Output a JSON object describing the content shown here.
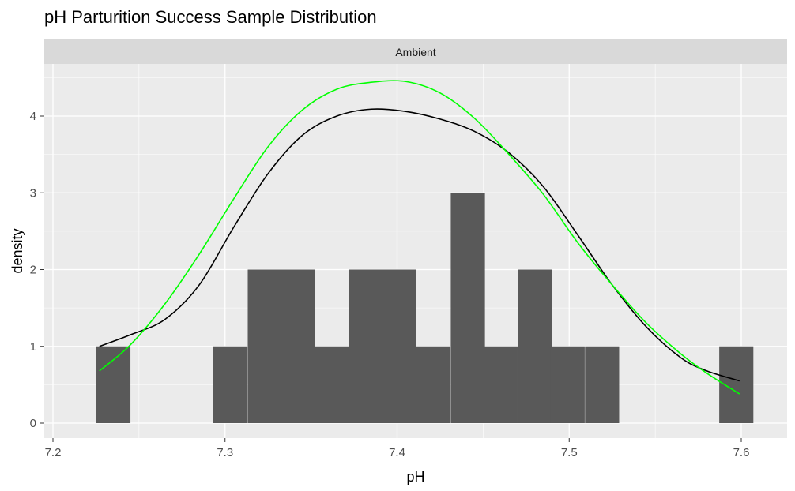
{
  "chart_data": {
    "type": "histogram",
    "title": "pH Parturition Success Sample Distribution",
    "facet_label": "Ambient",
    "xlabel": "pH",
    "ylabel": "density",
    "xlim": [
      7.2,
      7.61
    ],
    "ylim": [
      0,
      4.6
    ],
    "x_ticks": [
      {
        "value": 7.2,
        "label": "7.2"
      },
      {
        "value": 7.3,
        "label": "7.3"
      },
      {
        "value": 7.4,
        "label": "7.4"
      },
      {
        "value": 7.5,
        "label": "7.5"
      },
      {
        "value": 7.6,
        "label": "7.6"
      }
    ],
    "y_ticks": [
      {
        "value": 0,
        "label": "0"
      },
      {
        "value": 1,
        "label": "1"
      },
      {
        "value": 2,
        "label": "2"
      },
      {
        "value": 3,
        "label": "3"
      },
      {
        "value": 4,
        "label": "4"
      }
    ],
    "bin_width": 0.0196,
    "bars": [
      {
        "x": 7.235,
        "y": 1
      },
      {
        "x": 7.303,
        "y": 1
      },
      {
        "x": 7.323,
        "y": 2
      },
      {
        "x": 7.342,
        "y": 2
      },
      {
        "x": 7.362,
        "y": 1
      },
      {
        "x": 7.382,
        "y": 2
      },
      {
        "x": 7.401,
        "y": 2
      },
      {
        "x": 7.421,
        "y": 1
      },
      {
        "x": 7.441,
        "y": 3
      },
      {
        "x": 7.46,
        "y": 1
      },
      {
        "x": 7.48,
        "y": 2
      },
      {
        "x": 7.499,
        "y": 1
      },
      {
        "x": 7.519,
        "y": 1
      },
      {
        "x": 7.597,
        "y": 1
      }
    ],
    "series": [
      {
        "kind": "density",
        "color": "#000000",
        "points": [
          [
            7.227,
            1.0
          ],
          [
            7.245,
            1.15
          ],
          [
            7.265,
            1.35
          ],
          [
            7.285,
            1.8
          ],
          [
            7.305,
            2.55
          ],
          [
            7.325,
            3.25
          ],
          [
            7.345,
            3.75
          ],
          [
            7.365,
            4.0
          ],
          [
            7.385,
            4.09
          ],
          [
            7.405,
            4.06
          ],
          [
            7.425,
            3.96
          ],
          [
            7.445,
            3.8
          ],
          [
            7.465,
            3.52
          ],
          [
            7.485,
            3.08
          ],
          [
            7.505,
            2.45
          ],
          [
            7.525,
            1.8
          ],
          [
            7.545,
            1.25
          ],
          [
            7.565,
            0.85
          ],
          [
            7.58,
            0.68
          ],
          [
            7.599,
            0.55
          ]
        ]
      },
      {
        "kind": "normal",
        "color": "#00ff00",
        "points": [
          [
            7.227,
            0.68
          ],
          [
            7.245,
            1.02
          ],
          [
            7.265,
            1.55
          ],
          [
            7.285,
            2.2
          ],
          [
            7.305,
            2.92
          ],
          [
            7.325,
            3.6
          ],
          [
            7.345,
            4.08
          ],
          [
            7.365,
            4.35
          ],
          [
            7.385,
            4.44
          ],
          [
            7.405,
            4.45
          ],
          [
            7.425,
            4.3
          ],
          [
            7.445,
            3.97
          ],
          [
            7.465,
            3.5
          ],
          [
            7.485,
            2.98
          ],
          [
            7.505,
            2.35
          ],
          [
            7.525,
            1.8
          ],
          [
            7.545,
            1.3
          ],
          [
            7.565,
            0.9
          ],
          [
            7.58,
            0.65
          ],
          [
            7.599,
            0.38
          ]
        ]
      }
    ],
    "bar_color": "#595959",
    "panel_background": "#ebebeb",
    "strip_background": "#d9d9d9",
    "grid": true,
    "legend": "none"
  }
}
